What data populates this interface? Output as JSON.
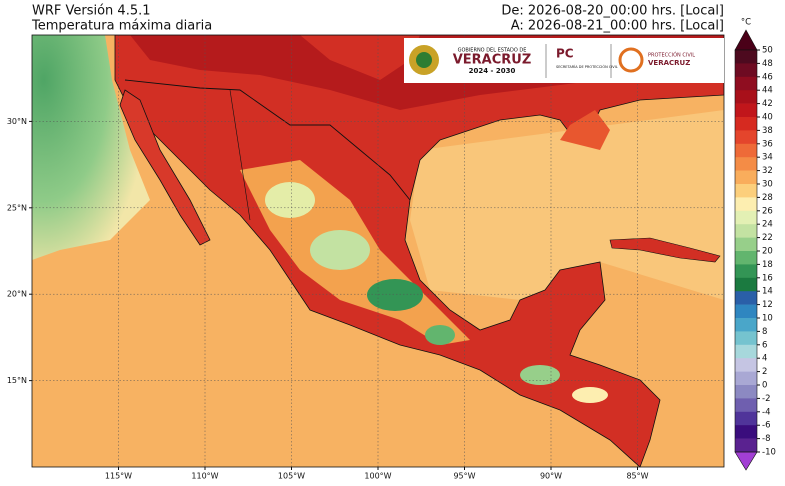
{
  "header": {
    "model": "WRF Versión 4.5.1",
    "variable": "Temperatura máxima diaria",
    "from": "De: 2026-08-20_00:00 hrs. [Local]",
    "to": "A: 2026-08-21_00:00 hrs. [Local]"
  },
  "logos": {
    "gov_line1": "GOBIERNO DEL ESTADO DE",
    "gov_name": "VERACRUZ",
    "gov_years": "2024 - 2030",
    "pc": "PC",
    "pc_sub": "SECRETARÍA DE PROTECCIÓN CIVIL",
    "pcv_line1": "PROTECCIÓN CIVIL",
    "pcv_line2": "VERACRUZ"
  },
  "map": {
    "xlim": [
      -120,
      -80
    ],
    "ylim": [
      10,
      35
    ],
    "xticks": [
      {
        "value": -115,
        "label": "115°W"
      },
      {
        "value": -110,
        "label": "110°W"
      },
      {
        "value": -105,
        "label": "105°W"
      },
      {
        "value": -100,
        "label": "100°W"
      },
      {
        "value": -95,
        "label": "95°W"
      },
      {
        "value": -90,
        "label": "90°W"
      },
      {
        "value": -85,
        "label": "85°W"
      }
    ],
    "yticks": [
      {
        "value": 15,
        "label": "15°N"
      },
      {
        "value": 20,
        "label": "20°N"
      },
      {
        "value": 25,
        "label": "25°N"
      },
      {
        "value": 30,
        "label": "30°N"
      }
    ],
    "grid": true
  },
  "colorbar": {
    "unit": "°C",
    "ticks": [
      50,
      48,
      46,
      44,
      42,
      40,
      38,
      36,
      34,
      32,
      30,
      28,
      26,
      24,
      22,
      20,
      18,
      16,
      14,
      12,
      10,
      8,
      6,
      4,
      2,
      0,
      -2,
      -4,
      -6,
      -8,
      -10
    ],
    "colors": [
      "#4d0a1f",
      "#6e0b22",
      "#8f0d20",
      "#a8101a",
      "#c1161b",
      "#d62a20",
      "#e4452c",
      "#ee6a38",
      "#f48c46",
      "#f9ad5c",
      "#fccf7c",
      "#fdeeb0",
      "#e3f0b4",
      "#c3e2a2",
      "#97cf8a",
      "#62b56e",
      "#339555",
      "#1b7a40",
      "#2a5fa8",
      "#2f86c0",
      "#4aa6c9",
      "#75c3cf",
      "#a7d8dc",
      "#c5c5e3",
      "#a9a8d4",
      "#8c89c2",
      "#6f5faf",
      "#50349a",
      "#3a0d7d",
      "#5a2290"
    ],
    "over": "#4a0018",
    "under": "#a23fd4"
  }
}
